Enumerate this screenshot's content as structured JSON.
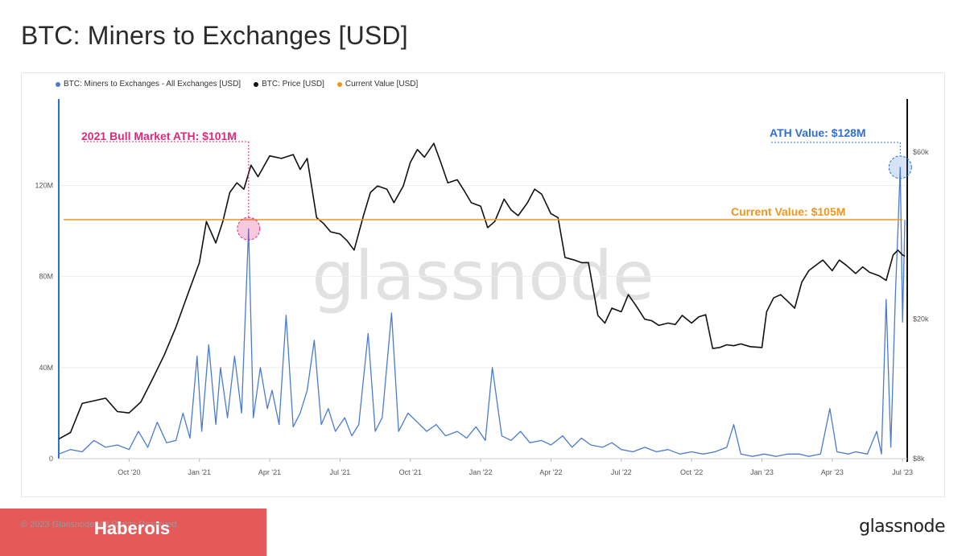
{
  "page": {
    "title": "BTC: Miners to Exchanges [USD]",
    "copyright": "© 2023 Glassnode. All Rights Reserved.",
    "banner_text": "Haberois",
    "logo": "glassnode",
    "watermark": "glassnode"
  },
  "legend": [
    {
      "label": "BTC: Miners to Exchanges - All Exchanges [USD]",
      "color": "#4a7bd0"
    },
    {
      "label": "BTC: Price [USD]",
      "color": "#111111"
    },
    {
      "label": "Current Value [USD]",
      "color": "#f0961e"
    }
  ],
  "annotations": {
    "bull_ath": "2021 Bull Market ATH: $101M",
    "ath": "ATH Value: $128M",
    "current": "Current Value: $105M"
  },
  "chart_data": {
    "type": "line",
    "x_tick_labels": [
      "Oct '20",
      "Jan '21",
      "Apr '21",
      "Jul '21",
      "Oct '21",
      "Jan '22",
      "Apr '22",
      "Jul '22",
      "Oct '22",
      "Jan '23",
      "Apr '23",
      "Jul '23"
    ],
    "x_tick_months": [
      3,
      6,
      9,
      12,
      15,
      18,
      21,
      24,
      27,
      30,
      33,
      36
    ],
    "x_range_months": [
      0.0,
      36.2
    ],
    "y_left": {
      "ticks": [
        0,
        40,
        80,
        120
      ],
      "tick_labels": [
        "0",
        "40M",
        "80M",
        "120M"
      ],
      "range_musd": [
        0,
        158
      ]
    },
    "y_right": {
      "scale": "log",
      "ticks": [
        8000,
        20000,
        60000
      ],
      "tick_labels": [
        "$8k",
        "$20k",
        "$60k"
      ],
      "range_usd": [
        8000,
        85000
      ]
    },
    "series": [
      {
        "name": "BTC: Miners to Exchanges - All Exchanges [USD]",
        "axis": "left",
        "color": "#4a7bd0",
        "points": [
          [
            0.0,
            2
          ],
          [
            0.5,
            4
          ],
          [
            1.0,
            3
          ],
          [
            1.5,
            8
          ],
          [
            2.0,
            5
          ],
          [
            2.5,
            6
          ],
          [
            3.0,
            4
          ],
          [
            3.4,
            12
          ],
          [
            3.8,
            5
          ],
          [
            4.2,
            16
          ],
          [
            4.6,
            7
          ],
          [
            5.0,
            8
          ],
          [
            5.3,
            20
          ],
          [
            5.6,
            9
          ],
          [
            5.9,
            45
          ],
          [
            6.1,
            12
          ],
          [
            6.4,
            50
          ],
          [
            6.7,
            15
          ],
          [
            6.9,
            40
          ],
          [
            7.2,
            18
          ],
          [
            7.5,
            45
          ],
          [
            7.8,
            20
          ],
          [
            8.1,
            101
          ],
          [
            8.3,
            18
          ],
          [
            8.6,
            40
          ],
          [
            8.9,
            22
          ],
          [
            9.1,
            30
          ],
          [
            9.4,
            15
          ],
          [
            9.7,
            63
          ],
          [
            10.0,
            14
          ],
          [
            10.3,
            20
          ],
          [
            10.6,
            30
          ],
          [
            10.9,
            52
          ],
          [
            11.2,
            15
          ],
          [
            11.5,
            22
          ],
          [
            11.8,
            12
          ],
          [
            12.2,
            18
          ],
          [
            12.5,
            10
          ],
          [
            12.8,
            15
          ],
          [
            13.2,
            55
          ],
          [
            13.5,
            12
          ],
          [
            13.8,
            18
          ],
          [
            14.2,
            64
          ],
          [
            14.5,
            12
          ],
          [
            14.9,
            20
          ],
          [
            15.3,
            16
          ],
          [
            15.7,
            12
          ],
          [
            16.1,
            15
          ],
          [
            16.5,
            10
          ],
          [
            17.0,
            12
          ],
          [
            17.4,
            9
          ],
          [
            17.8,
            14
          ],
          [
            18.2,
            8
          ],
          [
            18.5,
            40
          ],
          [
            18.9,
            10
          ],
          [
            19.3,
            8
          ],
          [
            19.7,
            12
          ],
          [
            20.1,
            7
          ],
          [
            20.6,
            8
          ],
          [
            21.0,
            6
          ],
          [
            21.5,
            10
          ],
          [
            21.9,
            5
          ],
          [
            22.3,
            9
          ],
          [
            22.7,
            6
          ],
          [
            23.2,
            5
          ],
          [
            23.6,
            7
          ],
          [
            24.0,
            4
          ],
          [
            24.5,
            3
          ],
          [
            25.0,
            5
          ],
          [
            25.5,
            3
          ],
          [
            26.0,
            4
          ],
          [
            26.5,
            2
          ],
          [
            27.0,
            3
          ],
          [
            27.5,
            2
          ],
          [
            28.0,
            3
          ],
          [
            28.5,
            5
          ],
          [
            28.8,
            15
          ],
          [
            29.1,
            2
          ],
          [
            29.6,
            1
          ],
          [
            30.1,
            2
          ],
          [
            30.6,
            1
          ],
          [
            31.1,
            2
          ],
          [
            31.6,
            2
          ],
          [
            32.0,
            1
          ],
          [
            32.5,
            2
          ],
          [
            32.9,
            22
          ],
          [
            33.2,
            3
          ],
          [
            33.7,
            2
          ],
          [
            34.0,
            3
          ],
          [
            34.5,
            2
          ],
          [
            34.9,
            12
          ],
          [
            35.1,
            2
          ],
          [
            35.3,
            70
          ],
          [
            35.5,
            5
          ],
          [
            35.7,
            73
          ],
          [
            35.8,
            100
          ],
          [
            35.9,
            128
          ],
          [
            36.0,
            60
          ],
          [
            36.1,
            105
          ]
        ]
      },
      {
        "name": "BTC: Price [USD]",
        "axis": "right",
        "color": "#111111",
        "points": [
          [
            0.0,
            9100
          ],
          [
            0.5,
            9500
          ],
          [
            1.0,
            11500
          ],
          [
            1.5,
            11700
          ],
          [
            2.0,
            11900
          ],
          [
            2.5,
            10900
          ],
          [
            3.0,
            10800
          ],
          [
            3.5,
            11600
          ],
          [
            4.0,
            13500
          ],
          [
            4.5,
            15800
          ],
          [
            5.0,
            19000
          ],
          [
            5.5,
            23500
          ],
          [
            6.0,
            29000
          ],
          [
            6.3,
            38000
          ],
          [
            6.7,
            33000
          ],
          [
            7.0,
            38000
          ],
          [
            7.3,
            46000
          ],
          [
            7.6,
            49000
          ],
          [
            7.9,
            47000
          ],
          [
            8.2,
            55000
          ],
          [
            8.5,
            51000
          ],
          [
            9.0,
            58500
          ],
          [
            9.5,
            57500
          ],
          [
            10.0,
            59000
          ],
          [
            10.3,
            53500
          ],
          [
            10.6,
            57500
          ],
          [
            11.0,
            39000
          ],
          [
            11.3,
            37500
          ],
          [
            11.6,
            35500
          ],
          [
            12.0,
            35000
          ],
          [
            12.3,
            33500
          ],
          [
            12.6,
            31500
          ],
          [
            13.0,
            39500
          ],
          [
            13.3,
            46000
          ],
          [
            13.6,
            48000
          ],
          [
            14.0,
            47000
          ],
          [
            14.3,
            43000
          ],
          [
            14.7,
            48000
          ],
          [
            15.0,
            56000
          ],
          [
            15.3,
            61000
          ],
          [
            15.6,
            58000
          ],
          [
            16.0,
            63500
          ],
          [
            16.3,
            56000
          ],
          [
            16.6,
            49000
          ],
          [
            17.0,
            50000
          ],
          [
            17.3,
            46500
          ],
          [
            17.6,
            43000
          ],
          [
            18.0,
            42000
          ],
          [
            18.3,
            36500
          ],
          [
            18.6,
            38000
          ],
          [
            19.0,
            44000
          ],
          [
            19.3,
            41000
          ],
          [
            19.6,
            39500
          ],
          [
            20.0,
            43000
          ],
          [
            20.3,
            47000
          ],
          [
            20.6,
            45500
          ],
          [
            21.0,
            40000
          ],
          [
            21.3,
            39000
          ],
          [
            21.6,
            30000
          ],
          [
            22.0,
            29500
          ],
          [
            22.3,
            29000
          ],
          [
            22.6,
            29000
          ],
          [
            23.0,
            20500
          ],
          [
            23.3,
            19500
          ],
          [
            23.6,
            21500
          ],
          [
            24.0,
            21000
          ],
          [
            24.3,
            23500
          ],
          [
            24.6,
            22000
          ],
          [
            25.0,
            20000
          ],
          [
            25.3,
            19800
          ],
          [
            25.6,
            19200
          ],
          [
            26.0,
            19500
          ],
          [
            26.3,
            19300
          ],
          [
            26.6,
            20500
          ],
          [
            27.0,
            19500
          ],
          [
            27.3,
            20300
          ],
          [
            27.6,
            20600
          ],
          [
            27.9,
            16500
          ],
          [
            28.2,
            16600
          ],
          [
            28.5,
            16900
          ],
          [
            28.8,
            16800
          ],
          [
            29.1,
            17000
          ],
          [
            29.5,
            16700
          ],
          [
            30.0,
            16600
          ],
          [
            30.2,
            21000
          ],
          [
            30.5,
            23000
          ],
          [
            30.8,
            23500
          ],
          [
            31.1,
            22500
          ],
          [
            31.4,
            21500
          ],
          [
            31.7,
            25500
          ],
          [
            32.0,
            27500
          ],
          [
            32.3,
            28500
          ],
          [
            32.6,
            29500
          ],
          [
            33.0,
            27500
          ],
          [
            33.3,
            29500
          ],
          [
            33.6,
            28500
          ],
          [
            34.0,
            27000
          ],
          [
            34.3,
            28200
          ],
          [
            34.6,
            27200
          ],
          [
            35.0,
            26600
          ],
          [
            35.3,
            25800
          ],
          [
            35.6,
            30500
          ],
          [
            35.8,
            31500
          ],
          [
            36.0,
            30500
          ],
          [
            36.1,
            30300
          ]
        ]
      },
      {
        "name": "Current Value [USD]",
        "axis": "left",
        "color": "#f0961e",
        "type": "hline",
        "value": 105
      }
    ],
    "markers": [
      {
        "x": 8.1,
        "y": 101,
        "label": "2021 Bull Market ATH: $101M",
        "color": "#e0287a"
      },
      {
        "x": 35.9,
        "y": 128,
        "label": "ATH Value: $128M",
        "color": "#2f6fd6"
      }
    ],
    "grid": true,
    "legend_position": "top-left"
  }
}
